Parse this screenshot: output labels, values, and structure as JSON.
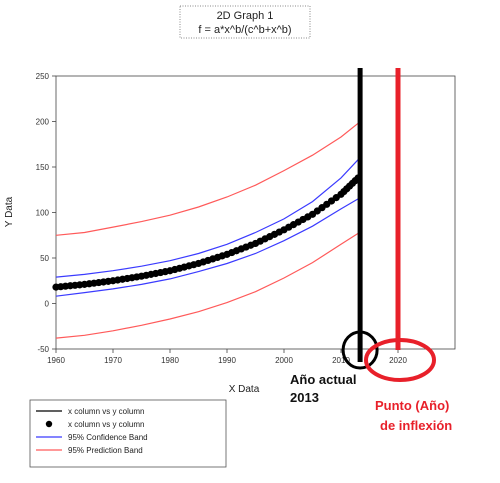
{
  "chart_data": {
    "type": "line",
    "title": "2D Graph 1",
    "subtitle": "f = a*x^b/(c^b+x^b)",
    "xlabel": "X Data",
    "ylabel": "Y Data",
    "xlim": [
      1960,
      2030
    ],
    "ylim": [
      -50,
      250
    ],
    "xticks": [
      1960,
      1970,
      1980,
      1990,
      2000,
      2010,
      2020
    ],
    "yticks": [
      -50,
      0,
      50,
      100,
      150,
      200,
      250
    ],
    "grid": false,
    "legend_position": "bottom-left",
    "x": [
      1960,
      1965,
      1970,
      1975,
      1980,
      1985,
      1990,
      1995,
      2000,
      2005,
      2010,
      2013
    ],
    "series": [
      {
        "name": "x column vs y column",
        "kind": "line",
        "color": "#000000",
        "values": [
          18,
          21,
          25,
          30,
          36,
          44,
          54,
          66,
          81,
          98,
          120,
          138
        ]
      },
      {
        "name": "x column vs y column",
        "kind": "points",
        "color": "#000000",
        "values": [
          18,
          21,
          25,
          30,
          36,
          44,
          54,
          66,
          81,
          98,
          120,
          138
        ]
      },
      {
        "name": "95% Confidence Band",
        "kind": "band",
        "color": "#3b3bff",
        "upper": [
          29,
          32,
          36,
          41,
          47,
          55,
          65,
          78,
          93,
          112,
          138,
          158
        ],
        "lower": [
          8,
          12,
          16,
          21,
          27,
          35,
          44,
          55,
          69,
          85,
          104,
          115
        ]
      },
      {
        "name": "95% Prediction Band",
        "kind": "band",
        "color": "#ff5a5a",
        "upper": [
          75,
          78,
          84,
          90,
          97,
          106,
          117,
          130,
          146,
          163,
          183,
          198
        ],
        "lower": [
          -38,
          -35,
          -30,
          -24,
          -17,
          -9,
          1,
          13,
          28,
          45,
          65,
          77
        ]
      }
    ],
    "annotations": {
      "current_year_label": [
        "Año actual",
        "2013"
      ],
      "current_year": 2013,
      "inflection_label": [
        "Punto (Año)",
        "de inflexión"
      ],
      "inflection_year": 2020
    }
  },
  "colors": {
    "black_marker": "#000000",
    "red_marker": "#e8202a",
    "confidence": "#3b3bff",
    "prediction": "#ff5a5a"
  }
}
